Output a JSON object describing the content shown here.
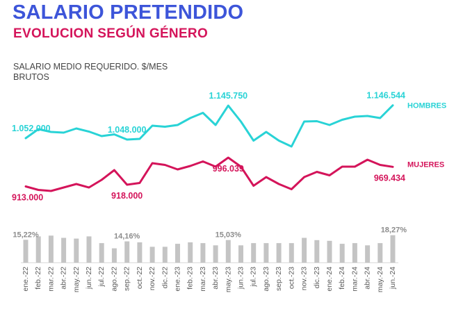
{
  "header": {
    "title": "SALARIO PRETENDIDO",
    "subtitle": "EVOLUCION SEGÚN GÉNERO",
    "ylabel_line1": "SALARIO MEDIO REQUERIDO. $/MES",
    "ylabel_line2": "BRUTOS"
  },
  "colors": {
    "title": "#3d55d9",
    "hombres": "#29d3d6",
    "mujeres": "#d4145a",
    "bars": "#c4c4c4",
    "bar_labels": "#8c8c8c"
  },
  "chart_data": [
    {
      "type": "line",
      "ylabel": "SALARIO MEDIO REQUERIDO. $/MES BRUTOS",
      "x": [
        "ene.-22",
        "feb.-22",
        "mar.-22",
        "abr.-22",
        "may.-22",
        "jun.-22",
        "jul.-22",
        "ago.-22",
        "sep.-22",
        "oct.-22",
        "nov.-22",
        "dic.-22",
        "ene.-23",
        "feb.-23",
        "mar.-23",
        "abr.-23",
        "may.-23",
        "jun.-23",
        "jul.-23",
        "ago.-23",
        "sep.-23",
        "oct.-23",
        "nov.-23",
        "dic.-23",
        "ene.-24",
        "feb.-24",
        "mar.-24",
        "abr.-24",
        "may.-24",
        "jun.-24"
      ],
      "series": [
        {
          "name": "HOMBRES",
          "values": [
            1052000,
            1078000,
            1070000,
            1068000,
            1080000,
            1071000,
            1058000,
            1063000,
            1048000,
            1050000,
            1088000,
            1085000,
            1090000,
            1110000,
            1125000,
            1090000,
            1145750,
            1100000,
            1045000,
            1070000,
            1045000,
            1028000,
            1100000,
            1101000,
            1090000,
            1105000,
            1114000,
            1116000,
            1110000,
            1146544
          ]
        },
        {
          "name": "MUJERES",
          "values": [
            913000,
            903000,
            900000,
            910000,
            920000,
            910000,
            932000,
            960000,
            918000,
            923000,
            980000,
            975000,
            962000,
            972000,
            985000,
            970000,
            996039,
            970000,
            915000,
            940000,
            920000,
            905000,
            940000,
            955000,
            945000,
            970000,
            970000,
            990000,
            975000,
            969434
          ]
        }
      ],
      "labels": [
        {
          "series": "HOMBRES",
          "index": 0,
          "text": "1.052.000"
        },
        {
          "series": "HOMBRES",
          "index": 8,
          "text": "1.048.000"
        },
        {
          "series": "HOMBRES",
          "index": 16,
          "text": "1.145.750"
        },
        {
          "series": "HOMBRES",
          "index": 29,
          "text": "1.146.544"
        },
        {
          "series": "MUJERES",
          "index": 0,
          "text": "913.000"
        },
        {
          "series": "MUJERES",
          "index": 8,
          "text": "918.000"
        },
        {
          "series": "MUJERES",
          "index": 16,
          "text": "996.039"
        },
        {
          "series": "MUJERES",
          "index": 29,
          "text": "969.434"
        }
      ],
      "ylim": [
        780000,
        1260000
      ],
      "grid": false,
      "legend": "right-end"
    },
    {
      "type": "bar",
      "categories": [
        "ene.-22",
        "feb.-22",
        "mar.-22",
        "abr.-22",
        "may.-22",
        "jun.-22",
        "jul.-22",
        "ago.-22",
        "sep.-22",
        "oct.-22",
        "nov.-22",
        "dic.-22",
        "ene.-23",
        "feb.-23",
        "mar.-23",
        "abr.-23",
        "may.-23",
        "jun.-23",
        "jul.-23",
        "ago.-23",
        "sep.-23",
        "oct.-23",
        "nov.-23",
        "dic.-23",
        "ene.-24",
        "feb.-24",
        "mar.-24",
        "abr.-24",
        "may.-24",
        "jun.-24"
      ],
      "values": [
        15.22,
        17.5,
        18.0,
        16.5,
        16.0,
        17.5,
        13.0,
        9.5,
        14.16,
        13.5,
        10.5,
        10.5,
        12.5,
        13.5,
        13.0,
        11.5,
        15.03,
        11.5,
        13.0,
        13.0,
        13.0,
        13.0,
        16.5,
        15.0,
        14.5,
        12.5,
        13.0,
        11.5,
        13.0,
        18.27
      ],
      "labels": [
        {
          "index": 0,
          "text": "15,22%"
        },
        {
          "index": 8,
          "text": "14,16%"
        },
        {
          "index": 16,
          "text": "15,03%"
        },
        {
          "index": 29,
          "text": "18,27%"
        }
      ],
      "ylim": [
        0,
        20
      ],
      "grid": false
    }
  ]
}
